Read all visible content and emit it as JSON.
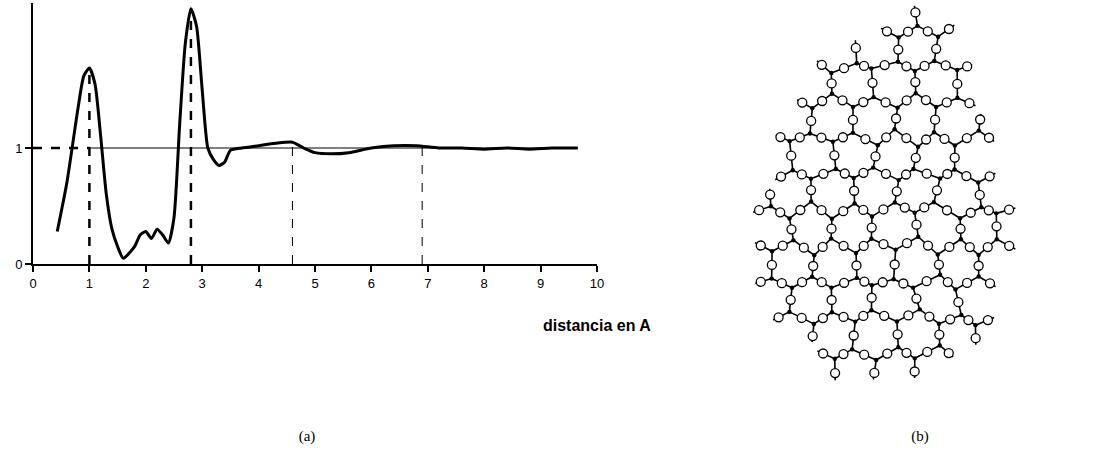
{
  "chart_data": {
    "type": "line",
    "panel": "(a)",
    "xlabel": "distancia en A",
    "color": "#000000",
    "x": [
      0.43,
      0.6,
      0.8,
      0.9,
      1.0,
      1.1,
      1.2,
      1.3,
      1.4,
      1.5,
      1.6,
      1.8,
      1.9,
      2.0,
      2.1,
      2.2,
      2.3,
      2.4,
      2.5,
      2.6,
      2.7,
      2.8,
      2.9,
      3.0,
      3.1,
      3.2,
      3.3,
      3.4,
      3.5,
      3.7,
      4.0,
      4.3,
      4.6,
      4.8,
      5.0,
      5.3,
      5.6,
      6.0,
      6.4,
      6.8,
      7.2,
      7.6,
      8.0,
      8.4,
      8.8,
      9.2,
      9.66
    ],
    "values": [
      0.28,
      0.7,
      1.35,
      1.62,
      1.69,
      1.55,
      1.1,
      0.6,
      0.3,
      0.15,
      0.05,
      0.15,
      0.25,
      0.28,
      0.22,
      0.3,
      0.25,
      0.18,
      0.4,
      1.2,
      1.9,
      2.2,
      2.05,
      1.5,
      1.0,
      0.9,
      0.85,
      0.88,
      0.98,
      1.0,
      1.02,
      1.04,
      1.05,
      1.0,
      0.96,
      0.95,
      0.96,
      1.0,
      1.02,
      1.02,
      1.0,
      1.0,
      0.99,
      1.0,
      0.99,
      1.0,
      1.0
    ],
    "xlim": [
      0,
      10
    ],
    "ylim": [
      0,
      2.25
    ],
    "xticks": [
      0,
      1,
      2,
      3,
      4,
      5,
      6,
      7,
      8,
      9,
      10
    ],
    "yticks": [
      0,
      1
    ],
    "vlines": [
      1,
      2.8,
      4.6,
      6.9
    ],
    "hline": 1
  },
  "diagram": {
    "panel": "(b)"
  }
}
